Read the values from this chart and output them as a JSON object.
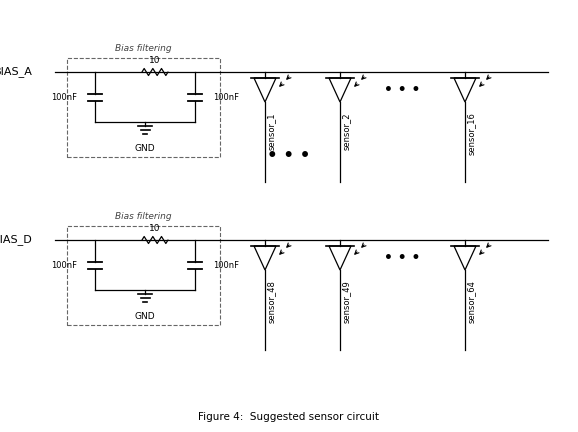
{
  "title": "Figure 4:  Suggested sensor circuit",
  "background_color": "#ffffff",
  "line_color": "#000000",
  "bias_a_label": "BIAS_A",
  "bias_d_label": "BIAS_D",
  "bias_filtering_label": "Bias filtering",
  "resistor_label": "10",
  "cap_label": "100nF",
  "gnd_label": "GND",
  "sensor_labels_top": [
    "sensor_1",
    "sensor_2",
    "sensor_16"
  ],
  "sensor_labels_bot": [
    "sensor_48",
    "sensor_49",
    "sensor_64"
  ],
  "dots_label": "• • •",
  "mid_dots_label": "• • •"
}
